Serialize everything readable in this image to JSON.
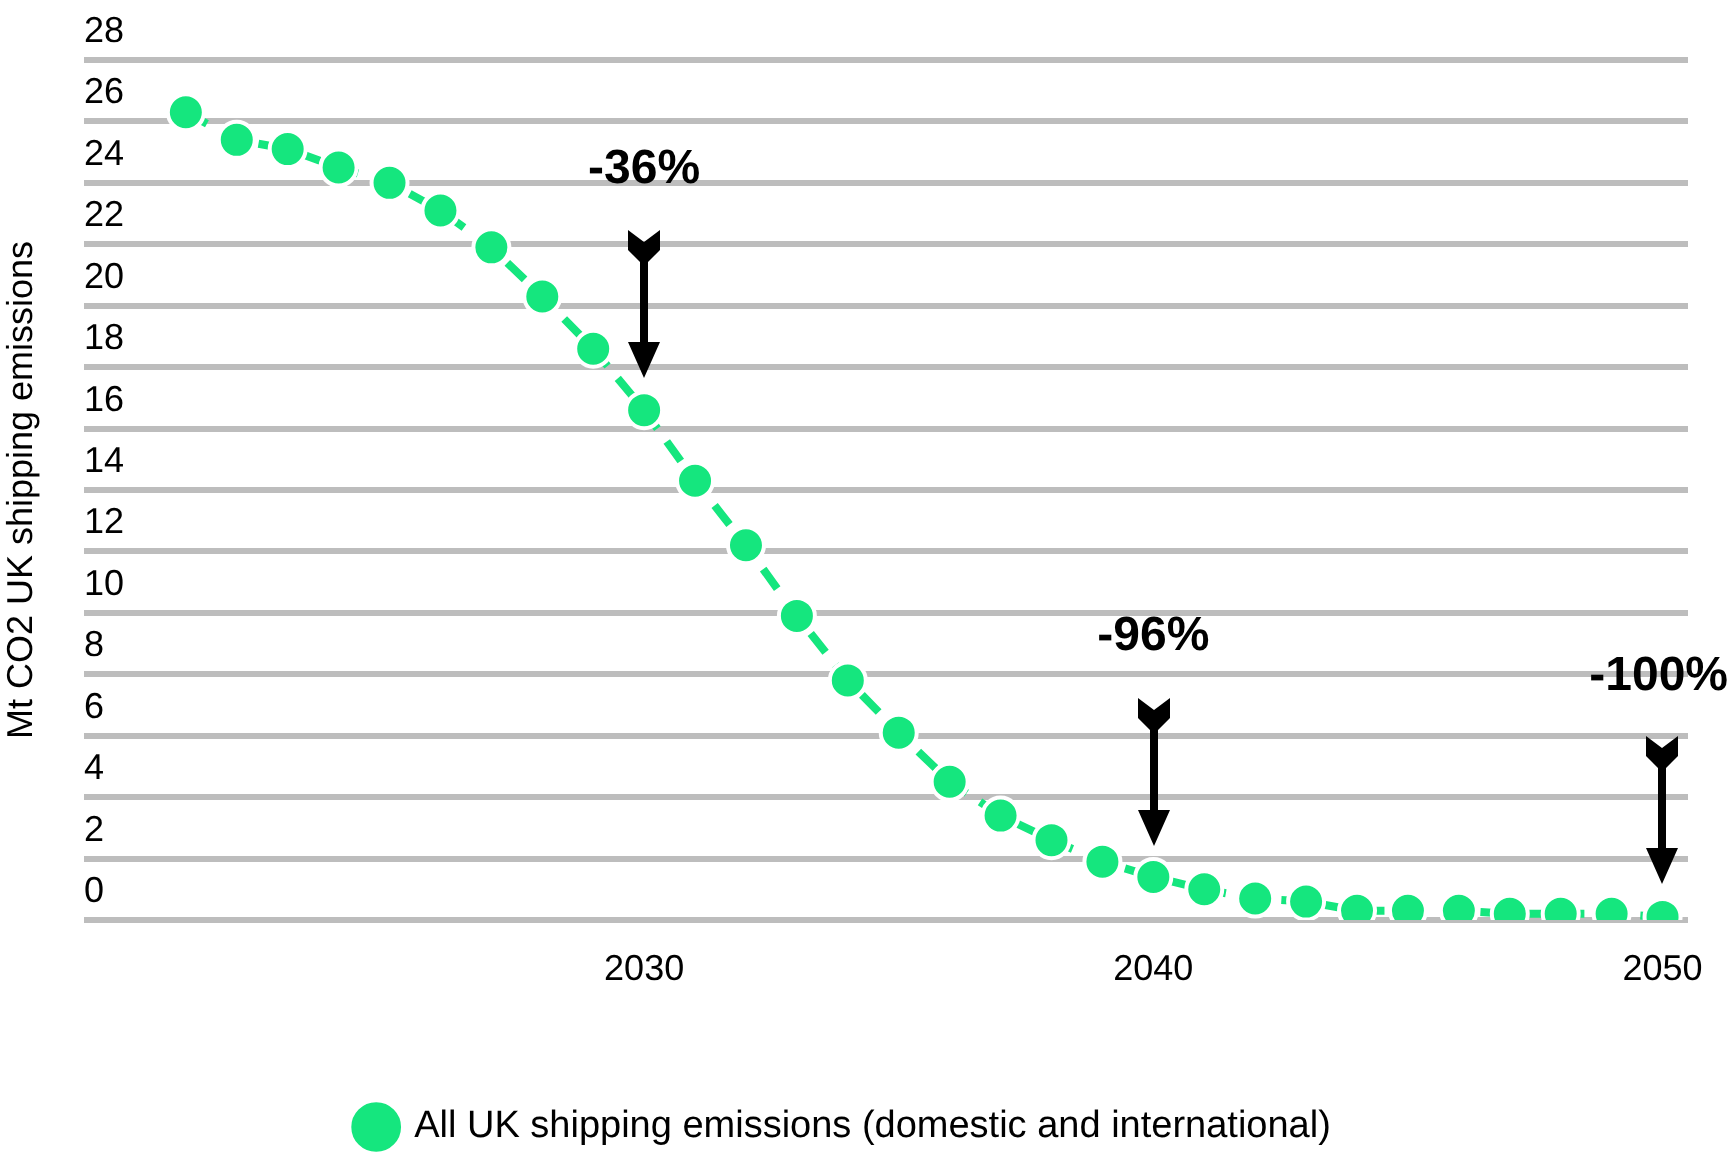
{
  "chart_data": {
    "type": "line",
    "ylabel": "Mt CO2 UK shipping emissions",
    "x": [
      2021,
      2022,
      2023,
      2024,
      2025,
      2026,
      2027,
      2028,
      2029,
      2030,
      2031,
      2032,
      2033,
      2034,
      2035,
      2036,
      2037,
      2038,
      2039,
      2040,
      2041,
      2042,
      2043,
      2044,
      2045,
      2046,
      2047,
      2048,
      2049,
      2050
    ],
    "series": [
      {
        "name": "All UK shipping emissions (domestic and international)",
        "color": "#15e67e",
        "values": [
          26.3,
          25.4,
          25.1,
          24.5,
          24.0,
          23.1,
          21.9,
          20.3,
          18.6,
          16.6,
          14.3,
          12.2,
          9.9,
          7.8,
          6.1,
          4.5,
          3.4,
          2.6,
          1.9,
          1.4,
          1.0,
          0.7,
          0.6,
          0.3,
          0.3,
          0.3,
          0.2,
          0.2,
          0.2,
          0.1
        ]
      }
    ],
    "xlim": [
      2019,
      2050.5
    ],
    "xticks": [
      2030,
      2040,
      2050
    ],
    "ylim": [
      0,
      28
    ],
    "yticks": [
      0,
      2,
      4,
      6,
      8,
      10,
      12,
      14,
      16,
      18,
      20,
      22,
      24,
      26,
      28
    ],
    "grid": "y",
    "legend": "bottom",
    "marker": "circle",
    "line_style": "dashed",
    "annotations": [
      "-36%",
      "-96%",
      "-100%"
    ]
  }
}
